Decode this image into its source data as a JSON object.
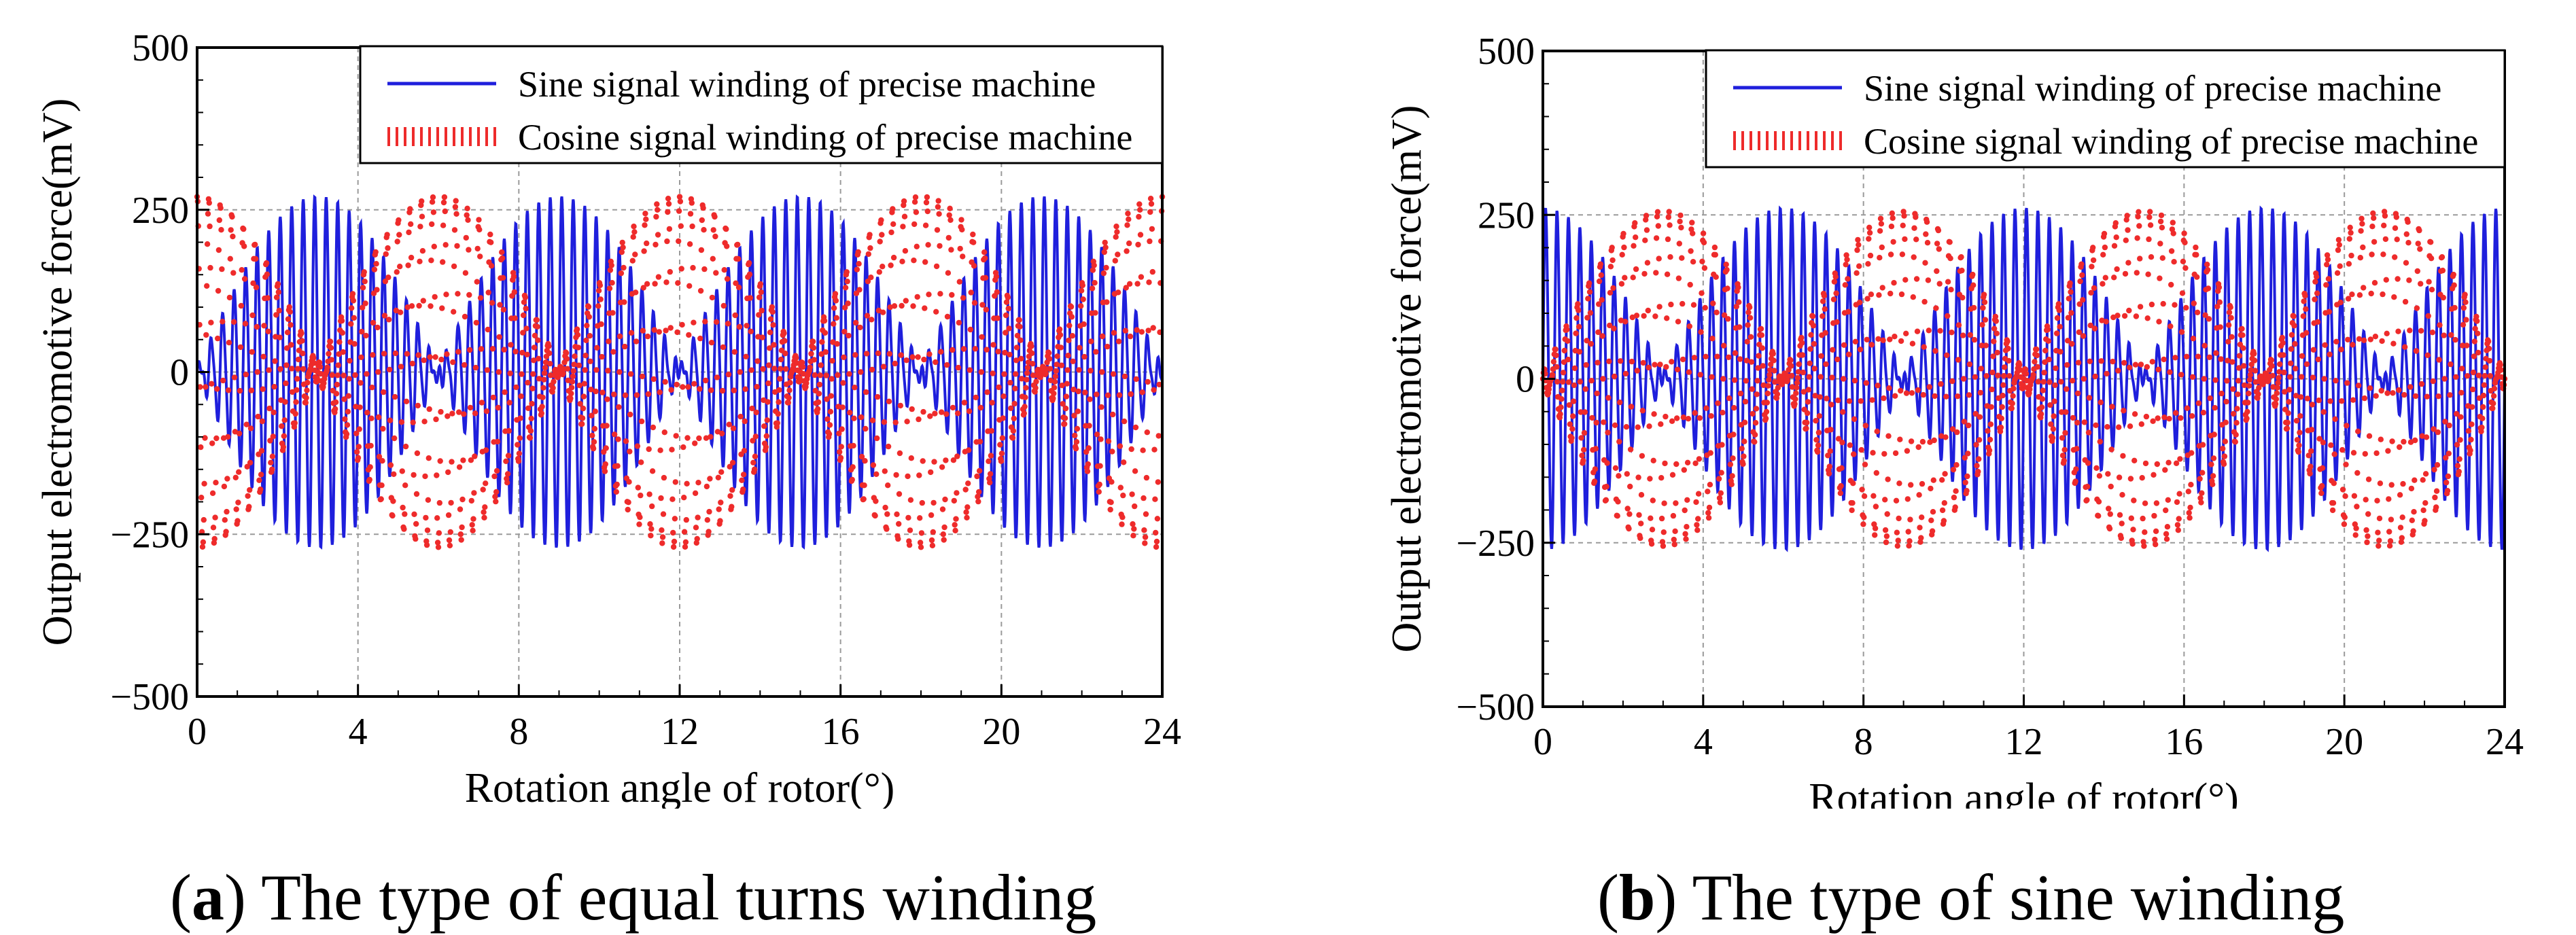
{
  "chart_data": [
    {
      "type": "line",
      "panel_label": "a",
      "caption": "The type of equal turns winding",
      "title": "",
      "xlabel": "Rotation angle of rotor(°)",
      "ylabel": "Output electromotive force(mV)",
      "xlim": [
        0,
        24
      ],
      "ylim": [
        -500,
        500
      ],
      "xticks": [
        0,
        4,
        8,
        12,
        16,
        20,
        24
      ],
      "yticks": [
        -500,
        -250,
        0,
        250,
        500
      ],
      "ytick_labels": [
        "−500",
        "−250",
        "0",
        "250",
        "500"
      ],
      "grid": true,
      "legend_position": "top-right",
      "carrier_cycles": 84,
      "series": [
        {
          "name": "Sine signal winding of precise machine",
          "color": "#1f1fdc",
          "style": "solid",
          "envelope": "sin",
          "amplitude": 270,
          "envelope_period_deg": 12,
          "residual": 12
        },
        {
          "name": "Cosine signal winding of precise machine",
          "color": "#ee2b2b",
          "style": "dotted",
          "envelope": "cos",
          "amplitude": 270,
          "envelope_period_deg": 12,
          "residual": 12
        }
      ]
    },
    {
      "type": "line",
      "panel_label": "b",
      "caption": "The type of sine winding",
      "title": "",
      "xlabel": "Rotation angle of rotor(°)",
      "ylabel": "Output electromotive force(mV)",
      "xlim": [
        0,
        24
      ],
      "ylim": [
        -500,
        500
      ],
      "xticks": [
        0,
        4,
        8,
        12,
        16,
        20,
        24
      ],
      "yticks": [
        -500,
        -250,
        0,
        250,
        500
      ],
      "ytick_labels": [
        "−500",
        "−250",
        "0",
        "250",
        "500"
      ],
      "grid": true,
      "legend_position": "top-right",
      "carrier_cycles": 84,
      "series": [
        {
          "name": "Sine signal winding of precise machine",
          "color": "#1f1fdc",
          "style": "solid",
          "envelope": "cos",
          "amplitude": 260,
          "envelope_period_deg": 12,
          "residual": 12
        },
        {
          "name": "Cosine signal winding of precise machine",
          "color": "#ee2b2b",
          "style": "dotted",
          "envelope": "sin",
          "amplitude": 255,
          "envelope_period_deg": 12,
          "residual": 12
        }
      ]
    }
  ]
}
